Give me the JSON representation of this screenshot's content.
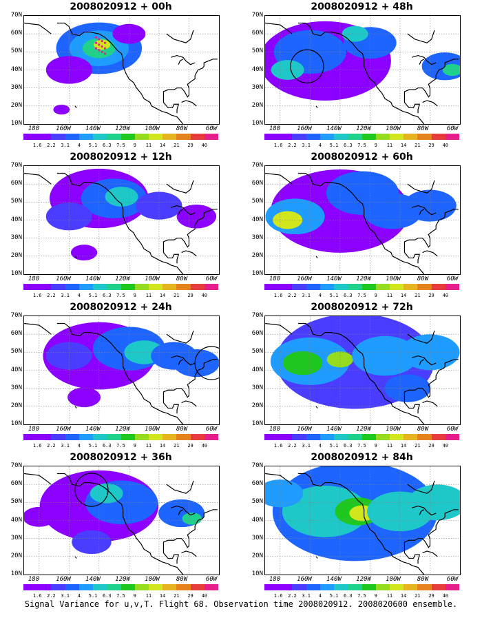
{
  "panels": [
    {
      "title": "2008020912 + 00h",
      "intensity": 0.2,
      "extent": 0.3,
      "circle": null
    },
    {
      "title": "2008020912 + 12h",
      "intensity": 0.3,
      "extent": 0.5,
      "circle": null
    },
    {
      "title": "2008020912 + 24h",
      "intensity": 0.4,
      "extent": 0.6,
      "circle": {
        "lon_deg_w": 65,
        "lat_deg_n": 44
      }
    },
    {
      "title": "2008020912 + 36h",
      "intensity": 0.5,
      "extent": 0.65,
      "circle": {
        "lon_deg_w": 145,
        "lat_deg_n": 57
      }
    },
    {
      "title": "2008020912 + 48h",
      "intensity": 0.5,
      "extent": 0.75,
      "circle": {
        "lon_deg_w": 162,
        "lat_deg_n": 42
      }
    },
    {
      "title": "2008020912 + 60h",
      "intensity": 0.6,
      "extent": 0.8,
      "circle": null
    },
    {
      "title": "2008020912 + 72h",
      "intensity": 0.7,
      "extent": 0.9,
      "circle": null
    },
    {
      "title": "2008020912 + 84h",
      "intensity": 0.8,
      "extent": 0.95,
      "circle": null
    }
  ],
  "lat_labels": [
    "70N",
    "60N",
    "50N",
    "40N",
    "30N",
    "20N",
    "10N"
  ],
  "lon_labels": [
    "180",
    "160W",
    "140W",
    "120W",
    "100W",
    "80W",
    "60W"
  ],
  "colorbar": {
    "labels": [
      "1.6",
      "2.2",
      "3.1",
      "4",
      "5.1",
      "6.3",
      "7.5",
      "9",
      "11",
      "14",
      "21",
      "29",
      "40"
    ],
    "colors": [
      "#8b00ff",
      "#8b00ff",
      "#4b3dff",
      "#1e64ff",
      "#1e9cff",
      "#1ec8c8",
      "#1ed28c",
      "#1ec81e",
      "#96dc1e",
      "#d2e61e",
      "#e6b41e",
      "#e6821e",
      "#e63c3c",
      "#e61e8c"
    ]
  },
  "caption": "Signal Variance for u,v,T. Flight 68. Observation time 2008020912. 2008020600 ensemble."
}
